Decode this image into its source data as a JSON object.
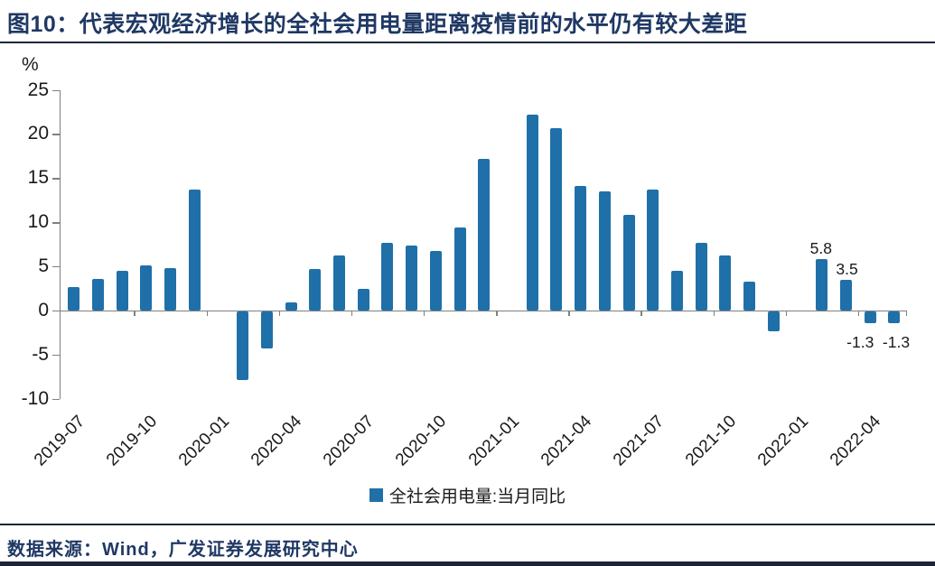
{
  "header": {
    "title": "图10：代表宏观经济增长的全社会用电量距离疫情前的水平仍有较大差距"
  },
  "chart_data": {
    "type": "bar",
    "title": "图10：代表宏观经济增长的全社会用电量距离疫情前的水平仍有较大差距",
    "ylabel_unit": "%",
    "legend": "全社会用电量:当月同比",
    "legend_position": "bottom-center",
    "grid": false,
    "ylim": [
      -10,
      25
    ],
    "yticks": [
      25,
      20,
      15,
      10,
      5,
      0,
      -5,
      -10
    ],
    "bar_color": "#1F70A9",
    "axis_color": "#808080",
    "text_color": "#1A1A1A",
    "accent_navy": "#1F3864",
    "categories": [
      "2019-07",
      "2019-08",
      "2019-09",
      "2019-10",
      "2019-11",
      "2019-12",
      "2020-01",
      "2020-02",
      "2020-03",
      "2020-04",
      "2020-05",
      "2020-06",
      "2020-07",
      "2020-08",
      "2020-09",
      "2020-10",
      "2020-11",
      "2020-12",
      "2021-01",
      "2021-02",
      "2021-03",
      "2021-04",
      "2021-05",
      "2021-06",
      "2021-07",
      "2021-08",
      "2021-09",
      "2021-10",
      "2021-11",
      "2021-12",
      "2022-01",
      "2022-02",
      "2022-03",
      "2022-04",
      "2022-05"
    ],
    "values": [
      2.7,
      3.6,
      4.5,
      5.1,
      4.8,
      13.7,
      null,
      -7.8,
      -4.2,
      0.9,
      4.7,
      6.2,
      2.5,
      7.7,
      7.4,
      6.7,
      9.4,
      17.2,
      null,
      22.2,
      20.7,
      14.1,
      13.5,
      10.8,
      13.7,
      4.5,
      7.7,
      6.2,
      3.3,
      -2.2,
      null,
      5.8,
      3.5,
      -1.3,
      -1.3
    ],
    "x_tick_labels": [
      "2019-07",
      "2019-10",
      "2020-01",
      "2020-04",
      "2020-07",
      "2020-10",
      "2021-01",
      "2021-04",
      "2021-07",
      "2021-10",
      "2022-01",
      "2022-04"
    ],
    "data_labels": [
      {
        "category": "2022-02",
        "text": "5.8",
        "dx": -1
      },
      {
        "category": "2022-03",
        "text": "3.5",
        "dx": 1
      },
      {
        "category": "2022-04",
        "text": "-1.3",
        "dx": -11
      },
      {
        "category": "2022-05",
        "text": "-1.3",
        "dx": 2
      }
    ]
  },
  "footer": {
    "source": "数据来源：Wind，广发证券发展研究中心"
  }
}
